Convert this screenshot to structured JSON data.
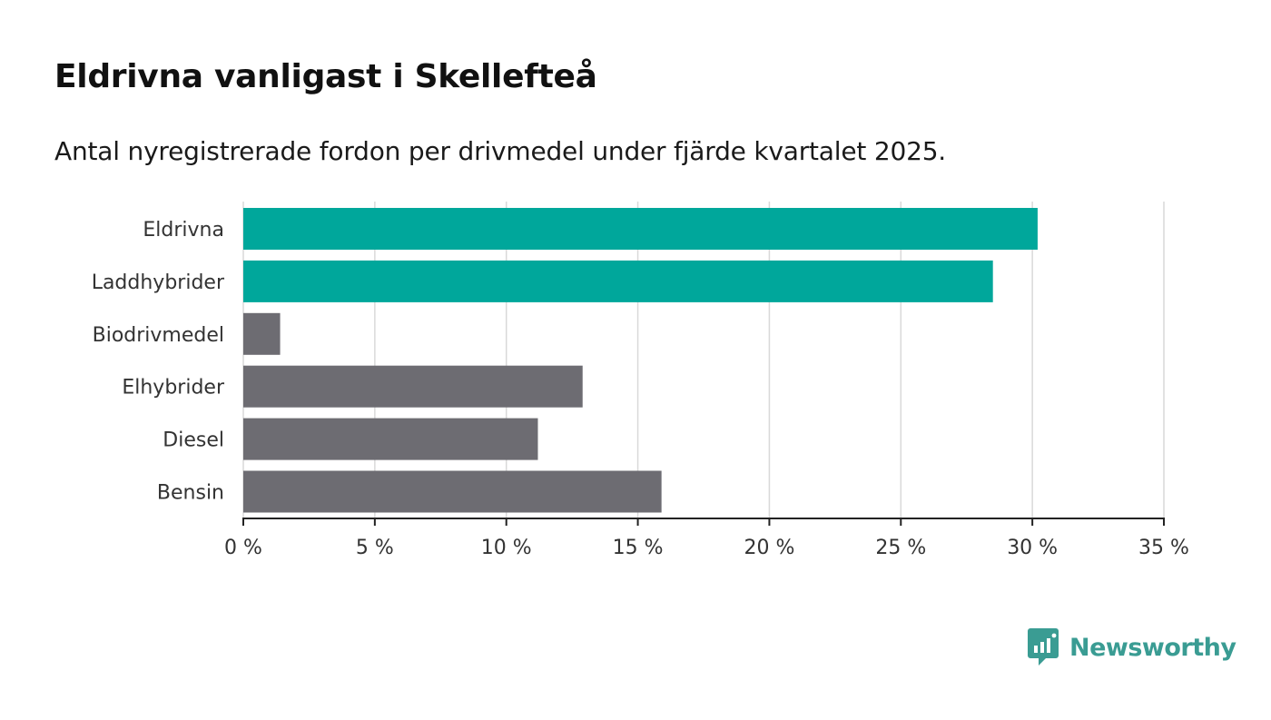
{
  "title": "Eldrivna vanligast i Skellefteå",
  "subtitle": "Antal nyregistrerade fordon per drivmedel under fjärde kvartalet 2025.",
  "brand": {
    "name": "Newsworthy",
    "color": "#3a9c93",
    "icon": "chart-speech-bubble-icon"
  },
  "colors": {
    "highlight": "#00a79b",
    "default": "#6d6c72",
    "grid": "#d9d9d9",
    "axis": "#222222",
    "text": "#333333"
  },
  "chart_data": {
    "type": "bar",
    "orientation": "horizontal",
    "categories": [
      "Eldrivna",
      "Laddhybrider",
      "Biodrivmedel",
      "Elhybrider",
      "Diesel",
      "Bensin"
    ],
    "values": [
      30.2,
      28.5,
      1.4,
      12.9,
      11.2,
      15.9
    ],
    "highlight": [
      true,
      true,
      false,
      false,
      false,
      false
    ],
    "xlim": [
      0,
      35
    ],
    "xticks": [
      0,
      5,
      10,
      15,
      20,
      25,
      30,
      35
    ],
    "xtick_labels": [
      "0 %",
      "5 %",
      "10 %",
      "15 %",
      "20 %",
      "25 %",
      "30 %",
      "35 %"
    ],
    "xlabel": "",
    "ylabel": "",
    "grid": true
  }
}
